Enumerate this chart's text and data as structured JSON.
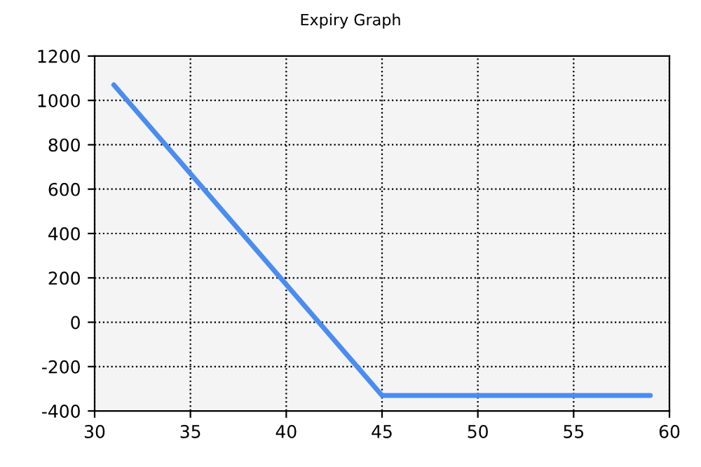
{
  "chart_data": {
    "type": "line",
    "title": "Expiry Graph",
    "x": [
      31,
      45,
      59
    ],
    "series": [
      {
        "color": "#4a8cf0",
        "values": [
          1070,
          -330,
          -330
        ]
      }
    ],
    "xlim": [
      30,
      60
    ],
    "xticks": [
      30,
      35,
      40,
      45,
      50,
      55,
      60
    ],
    "ylim": [
      -400,
      1200
    ],
    "yticks": [
      -400,
      -200,
      0,
      200,
      400,
      600,
      800,
      1000,
      1200
    ],
    "grid": true,
    "marker": "none",
    "line_style": "solid",
    "legend": false
  }
}
